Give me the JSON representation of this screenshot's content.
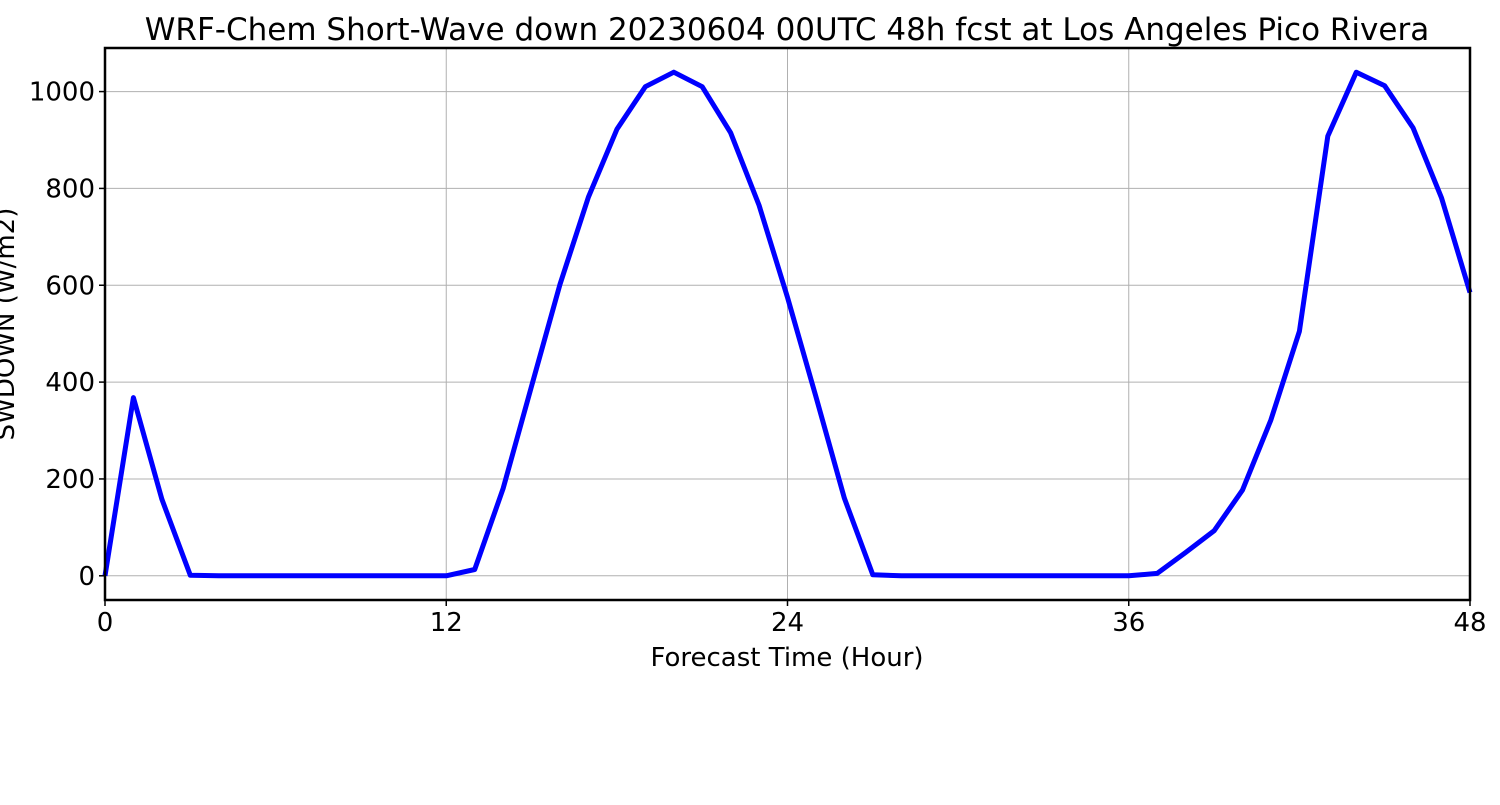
{
  "chart_data": {
    "type": "line",
    "title": "WRF-Chem Short-Wave down  20230604 00UTC 48h fcst at Los Angeles Pico Rivera",
    "xlabel": "Forecast Time (Hour)",
    "ylabel": "SWDOWN  (W/m2)",
    "xlim": [
      0,
      48
    ],
    "ylim": [
      -50,
      1090
    ],
    "xticks": [
      0,
      12,
      24,
      36,
      48
    ],
    "yticks": [
      0,
      200,
      400,
      600,
      800,
      1000
    ],
    "grid": true,
    "series": [
      {
        "color": "#0000ff",
        "x": [
          0,
          1,
          2,
          3,
          4,
          5,
          6,
          7,
          8,
          9,
          10,
          11,
          12,
          13,
          14,
          15,
          16,
          17,
          18,
          19,
          20,
          21,
          22,
          23,
          24,
          25,
          26,
          27,
          28,
          29,
          30,
          31,
          32,
          33,
          34,
          35,
          36,
          37,
          38,
          39,
          40,
          41,
          42,
          43,
          44,
          45,
          46,
          47,
          48
        ],
        "values": [
          0,
          368,
          158,
          1,
          0,
          0,
          0,
          0,
          0,
          0,
          0,
          0,
          0,
          13,
          180,
          392,
          602,
          782,
          922,
          1010,
          1040,
          1010,
          915,
          765,
          575,
          370,
          160,
          2,
          0,
          0,
          0,
          0,
          0,
          0,
          0,
          0,
          0,
          5,
          48,
          93,
          177,
          322,
          505,
          908,
          1040,
          1012,
          925,
          780,
          585
        ]
      }
    ]
  }
}
